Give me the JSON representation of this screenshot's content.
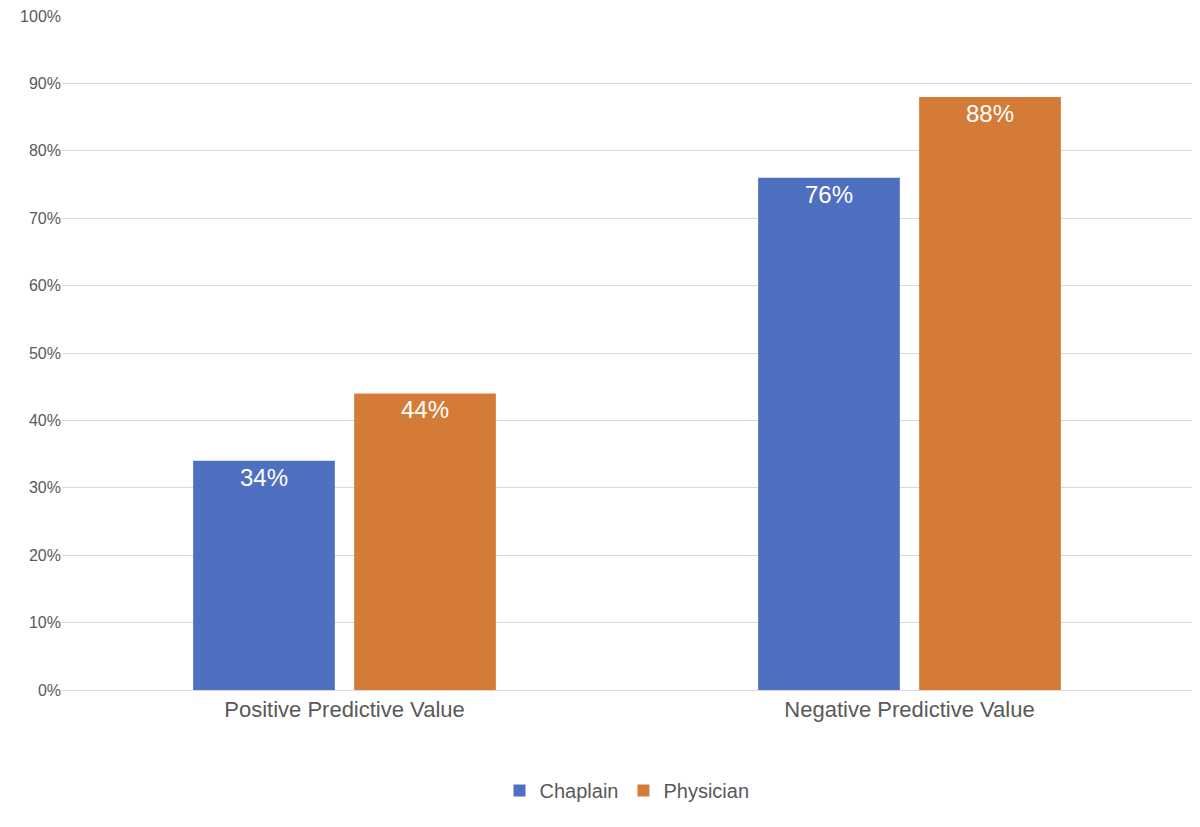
{
  "chart_data": {
    "type": "bar",
    "categories": [
      "Positive Predictive Value",
      "Negative Predictive Value"
    ],
    "series": [
      {
        "name": "Chaplain",
        "color": "#4f6fc0",
        "values": [
          34,
          76
        ],
        "value_labels": [
          "34%",
          "76%"
        ]
      },
      {
        "name": "Physician",
        "color": "#d57b38",
        "values": [
          44,
          88
        ],
        "value_labels": [
          "44%",
          "88%"
        ]
      }
    ],
    "ylim": [
      0,
      100
    ],
    "yticks": [
      {
        "value": 0,
        "label": "0%"
      },
      {
        "value": 10,
        "label": "10%"
      },
      {
        "value": 20,
        "label": "20%"
      },
      {
        "value": 30,
        "label": "30%"
      },
      {
        "value": 40,
        "label": "40%"
      },
      {
        "value": 50,
        "label": "50%"
      },
      {
        "value": 60,
        "label": "60%"
      },
      {
        "value": 70,
        "label": "70%"
      },
      {
        "value": 80,
        "label": "80%"
      },
      {
        "value": 90,
        "label": "90%"
      },
      {
        "value": 100,
        "label": "100%"
      }
    ],
    "grid": true,
    "legend": "bottom",
    "data_labels": true
  }
}
